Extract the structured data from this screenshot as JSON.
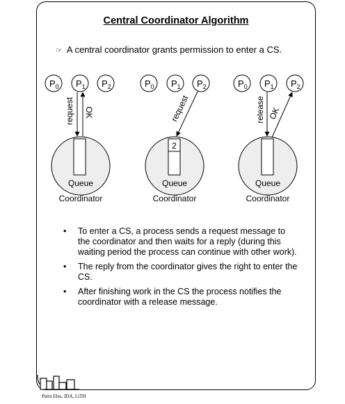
{
  "title": "Central Coordinator Algorithm",
  "intro": {
    "icon": "pointing-hand-icon",
    "text": "A central coordinator grants permission to enter a CS."
  },
  "process_base": "P",
  "panels": [
    {
      "processes": [
        "0",
        "1",
        "2"
      ],
      "arrows": [
        {
          "from": "P1",
          "to": "coordinator",
          "label": "request"
        },
        {
          "from": "coordinator",
          "to": "P1",
          "label": "OK"
        }
      ],
      "queue_entry": "",
      "queue_label": "Queue",
      "coordinator_label": "Coordinator"
    },
    {
      "processes": [
        "0",
        "1",
        "2"
      ],
      "arrows": [
        {
          "from": "P2",
          "to": "coordinator",
          "label": "request"
        }
      ],
      "queue_entry": "2",
      "queue_label": "Queue",
      "coordinator_label": "Coordinator"
    },
    {
      "processes": [
        "0",
        "1",
        "2"
      ],
      "arrows": [
        {
          "from": "P1",
          "to": "coordinator",
          "label": "release"
        },
        {
          "from": "coordinator",
          "to": "P2",
          "label": "OK"
        }
      ],
      "queue_entry": "",
      "queue_label": "Queue",
      "coordinator_label": "Coordinator"
    }
  ],
  "bullets": [
    "To enter a CS, a process sends a request message to the coordinator and then waits for a reply (during this waiting period the process can continue with other work).",
    "The reply from the coordinator gives the right to enter the CS.",
    "After finishing work in the CS the process notifies the coordinator with a release message."
  ],
  "footer": {
    "logo": "ida-logo",
    "author": "Petru Eles, IDA, LiTH"
  }
}
